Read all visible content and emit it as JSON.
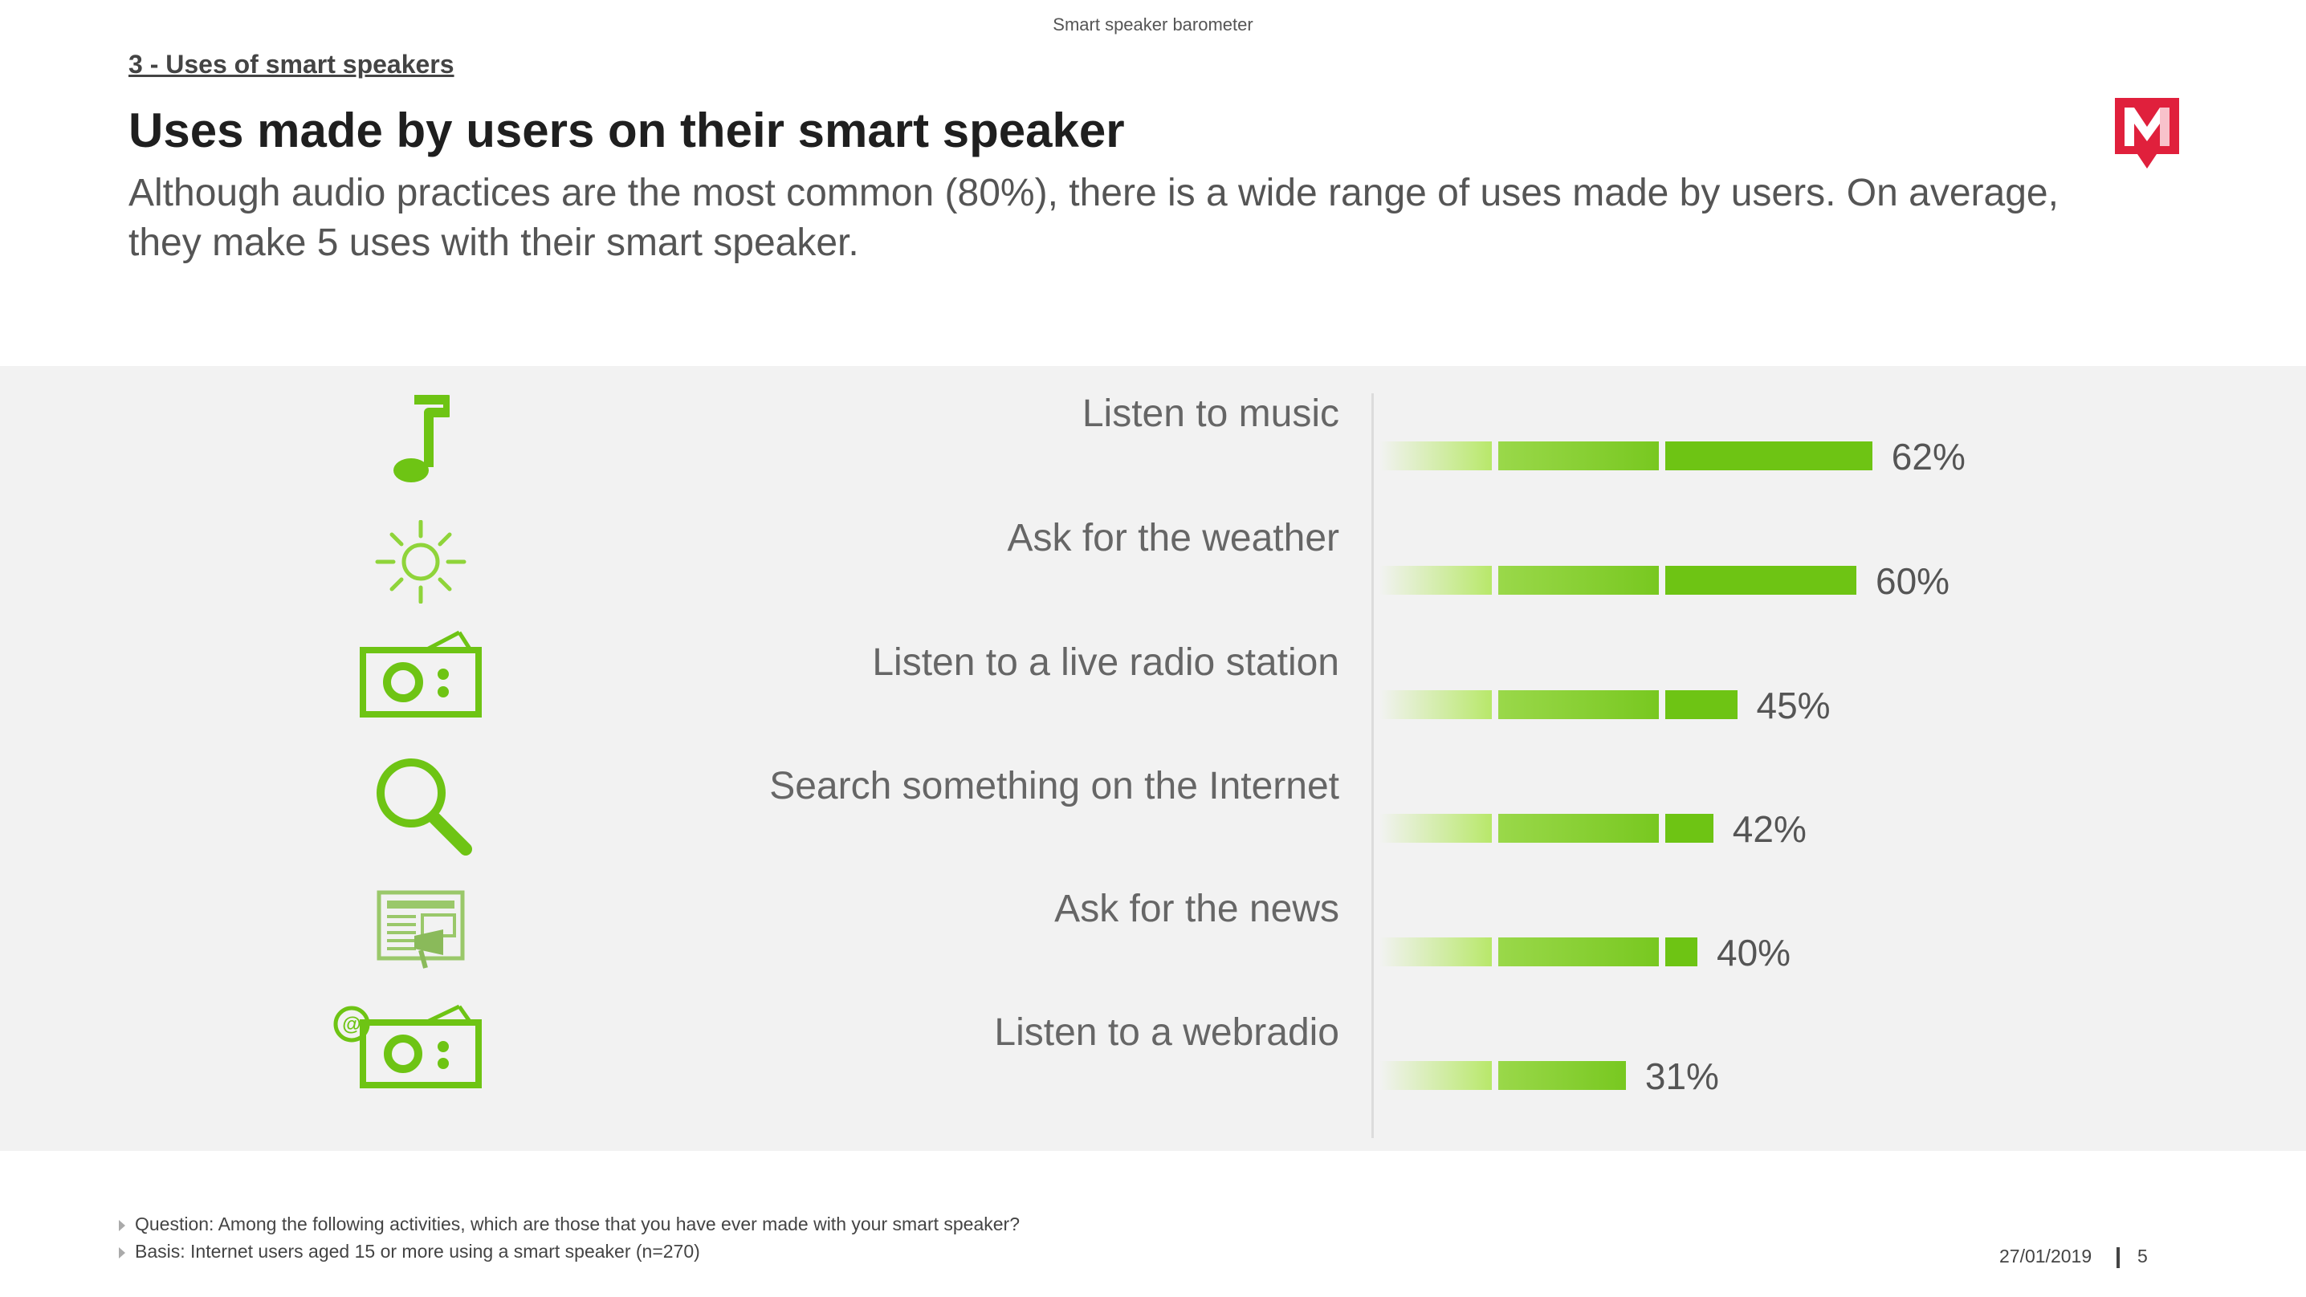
{
  "header": {
    "barometer": "Smart speaker barometer",
    "section": "3 - Uses of smart speakers",
    "title": "Uses made by users on their smart speaker",
    "subtitle": "Although audio practices are the most common (80%), there is a wide range of uses made by users. On average, they make 5 uses with their smart speaker."
  },
  "logo": {
    "letter": "M",
    "color": "#e0203c"
  },
  "colors": {
    "accent_green": "#6ec414",
    "band_bg": "#f2f2f2"
  },
  "chart_data": {
    "type": "bar",
    "orientation": "horizontal",
    "title": "Uses made by users on their smart speaker",
    "categories": [
      "Listen to music",
      "Ask for the weather",
      "Listen to a live radio station",
      "Search something on the Internet",
      "Ask for the news",
      "Listen to a webradio"
    ],
    "values": [
      62,
      60,
      45,
      42,
      40,
      31
    ],
    "value_labels": [
      "62%",
      "60%",
      "45%",
      "42%",
      "40%",
      "31%"
    ],
    "icons": [
      "music-note-icon",
      "sun-icon",
      "radio-icon",
      "magnifier-icon",
      "newspaper-icon",
      "webradio-icon"
    ],
    "unit": "%",
    "xlim": [
      0,
      100
    ],
    "grid": false,
    "legend": "none"
  },
  "footer": {
    "question": "Question: Among the following activities, which are those that you have ever made with your smart speaker?",
    "basis": "Basis: Internet users aged 15 or more using a smart speaker (n=270)",
    "date": "27/01/2019",
    "page": "5"
  }
}
